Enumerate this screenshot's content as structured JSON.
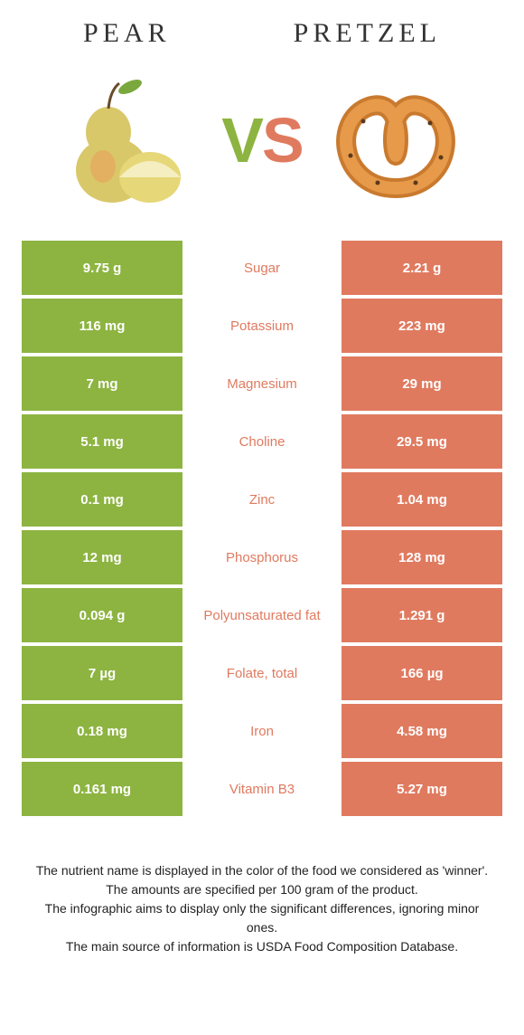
{
  "left": {
    "name": "Pear"
  },
  "right": {
    "name": "Pretzel"
  },
  "vs": {
    "v": "V",
    "s": "S"
  },
  "colors": {
    "left": "#8db441",
    "right": "#e07a5f",
    "text": "#333"
  },
  "rows": [
    {
      "left": "9.75 g",
      "label": "Sugar",
      "right": "2.21 g",
      "winner": "right"
    },
    {
      "left": "116 mg",
      "label": "Potassium",
      "right": "223 mg",
      "winner": "right"
    },
    {
      "left": "7 mg",
      "label": "Magnesium",
      "right": "29 mg",
      "winner": "right"
    },
    {
      "left": "5.1 mg",
      "label": "Choline",
      "right": "29.5 mg",
      "winner": "right"
    },
    {
      "left": "0.1 mg",
      "label": "Zinc",
      "right": "1.04 mg",
      "winner": "right"
    },
    {
      "left": "12 mg",
      "label": "Phosphorus",
      "right": "128 mg",
      "winner": "right"
    },
    {
      "left": "0.094 g",
      "label": "Polyunsaturated fat",
      "right": "1.291 g",
      "winner": "right"
    },
    {
      "left": "7 µg",
      "label": "Folate, total",
      "right": "166 µg",
      "winner": "right"
    },
    {
      "left": "0.18 mg",
      "label": "Iron",
      "right": "4.58 mg",
      "winner": "right"
    },
    {
      "left": "0.161 mg",
      "label": "Vitamin B3",
      "right": "5.27 mg",
      "winner": "right"
    }
  ],
  "footer": {
    "l1": "The nutrient name is displayed in the color of the food we considered as 'winner'.",
    "l2": "The amounts are specified per 100 gram of the product.",
    "l3": "The infographic aims to display only the significant differences, ignoring minor ones.",
    "l4": "The main source of information is USDA Food Composition Database."
  }
}
